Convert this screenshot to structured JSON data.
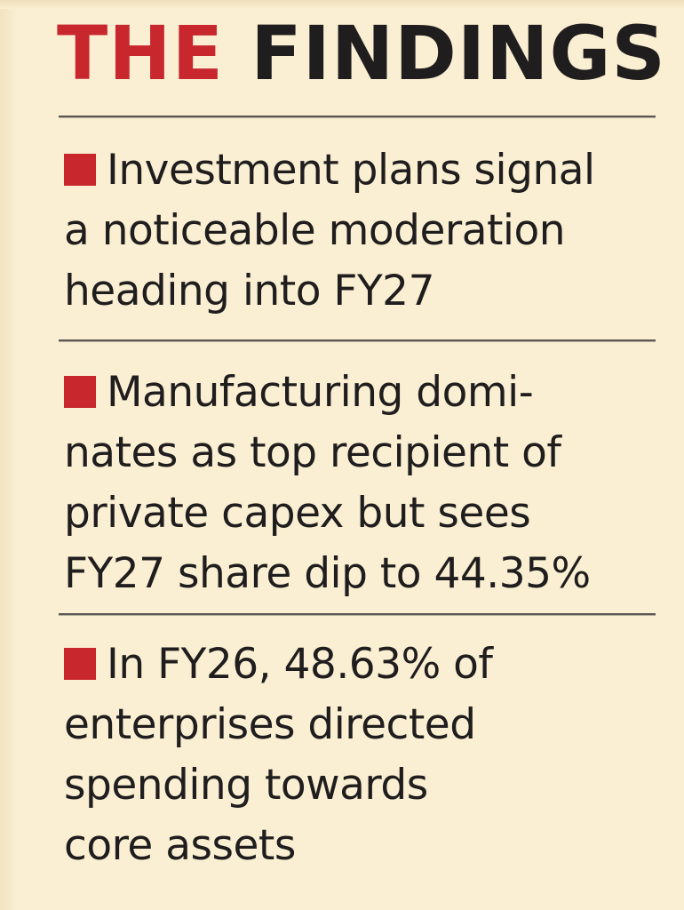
{
  "header": {
    "title_accent": "THE",
    "title_main": "FINDINGS"
  },
  "colors": {
    "accent": "#c8272d",
    "text": "#1f1d1e",
    "background": "#faefd2"
  },
  "findings": [
    {
      "lines": [
        "Investment plans signal",
        "a noticeable moderation",
        "heading into FY27"
      ]
    },
    {
      "lines": [
        "Manufacturing domi-",
        "nates as top recipient of",
        "private capex but sees",
        "FY27 share dip to 44.35%"
      ]
    },
    {
      "lines": [
        "In FY26, 48.63% of",
        "enterprises directed",
        "spending towards",
        "core assets"
      ]
    }
  ]
}
